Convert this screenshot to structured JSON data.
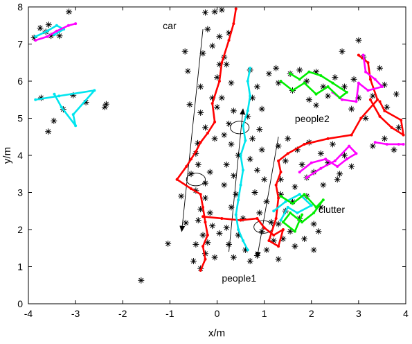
{
  "chart_data": {
    "type": "scatter",
    "title": "",
    "xlabel": "x/m",
    "ylabel": "y/m",
    "xlim": [
      -4,
      4
    ],
    "ylim": [
      0,
      8
    ],
    "xticks": [
      -4,
      -3,
      -2,
      -1,
      0,
      1,
      2,
      3,
      4
    ],
    "yticks": [
      0,
      1,
      2,
      3,
      4,
      5,
      6,
      7,
      8
    ],
    "grid": false,
    "colors": {
      "measurements": "#000000",
      "red": "#ff0000",
      "cyan": "#00e5ee",
      "green": "#00ee00",
      "magenta": "#ff00ff"
    },
    "annotations": [
      {
        "text": "car",
        "x": -1.15,
        "y": 7.4
      },
      {
        "text": "people2",
        "x": 1.65,
        "y": 4.9
      },
      {
        "text": "clutter",
        "x": 2.15,
        "y": 2.45
      },
      {
        "text": "people1",
        "x": 0.1,
        "y": 0.6
      }
    ],
    "arrows": [
      {
        "from": [
          -0.3,
          7.4
        ],
        "to": [
          -0.75,
          1.95
        ]
      },
      {
        "from": [
          0.25,
          1.4
        ],
        "to": [
          0.55,
          5.25
        ]
      },
      {
        "from": [
          1.3,
          4.5
        ],
        "to": [
          0.85,
          1.25
        ]
      }
    ],
    "ellipses": [
      {
        "cx": -0.45,
        "cy": 3.35,
        "rx": 0.2,
        "ry": 0.17
      },
      {
        "cx": 0.48,
        "cy": 4.75,
        "rx": 0.2,
        "ry": 0.17
      },
      {
        "cx": 0.98,
        "cy": 2.07,
        "rx": 0.2,
        "ry": 0.17
      }
    ],
    "measurements": [
      [
        -3.75,
        7.43
      ],
      [
        -3.63,
        7.33
      ],
      [
        -3.57,
        7.52
      ],
      [
        -3.88,
        7.17
      ],
      [
        -3.52,
        7.22
      ],
      [
        -3.34,
        7.22
      ],
      [
        -3.14,
        7.87
      ],
      [
        -3.46,
        4.93
      ],
      [
        -3.58,
        4.64
      ],
      [
        -3.26,
        5.24
      ],
      [
        -3.05,
        5.62
      ],
      [
        -2.78,
        5.43
      ],
      [
        -2.35,
        5.38
      ],
      [
        -2.38,
        5.3
      ],
      [
        -3.73,
        5.55
      ],
      [
        -1.61,
        0.63
      ],
      [
        -1.04,
        1.62
      ],
      [
        -0.68,
        6.8
      ],
      [
        -0.62,
        6.27
      ],
      [
        -0.58,
        5.37
      ],
      [
        -0.66,
        2.18
      ],
      [
        -0.41,
        4.33
      ],
      [
        -0.76,
        2.9
      ],
      [
        -0.25,
        7.85
      ],
      [
        -0.05,
        7.87
      ],
      [
        0.1,
        7.92
      ],
      [
        -0.2,
        7.4
      ],
      [
        0.05,
        7.2
      ],
      [
        -0.1,
        6.95
      ],
      [
        0.15,
        6.65
      ],
      [
        -0.3,
        6.75
      ],
      [
        0.05,
        6.45
      ],
      [
        0.0,
        6.1
      ],
      [
        -0.35,
        5.85
      ],
      [
        -0.1,
        5.55
      ],
      [
        -0.35,
        5.15
      ],
      [
        0.0,
        5.3
      ],
      [
        -0.25,
        4.75
      ],
      [
        -0.05,
        4.45
      ],
      [
        -0.45,
        4.05
      ],
      [
        -0.4,
        3.75
      ],
      [
        -0.15,
        3.55
      ],
      [
        -0.55,
        3.5
      ],
      [
        -0.25,
        3.25
      ],
      [
        -0.45,
        3.05
      ],
      [
        -0.25,
        2.85
      ],
      [
        -0.35,
        2.55
      ],
      [
        -0.15,
        2.45
      ],
      [
        -0.4,
        2.25
      ],
      [
        -0.1,
        2.1
      ],
      [
        -0.3,
        1.85
      ],
      [
        -0.45,
        1.6
      ],
      [
        -0.25,
        1.35
      ],
      [
        -0.5,
        1.15
      ],
      [
        -0.35,
        0.95
      ],
      [
        -0.05,
        1.25
      ],
      [
        -0.2,
        1.65
      ],
      [
        0.05,
        1.9
      ],
      [
        0.25,
        7.3
      ],
      [
        0.2,
        6.45
      ],
      [
        0.3,
        5.95
      ],
      [
        0.1,
        5.55
      ],
      [
        0.35,
        5.2
      ],
      [
        0.25,
        4.85
      ],
      [
        0.15,
        4.55
      ],
      [
        0.3,
        4.3
      ],
      [
        0.45,
        4.0
      ],
      [
        0.2,
        3.75
      ],
      [
        0.35,
        3.45
      ],
      [
        0.15,
        3.2
      ],
      [
        0.4,
        2.95
      ],
      [
        0.3,
        2.6
      ],
      [
        0.55,
        2.3
      ],
      [
        0.2,
        2.05
      ],
      [
        0.45,
        1.85
      ],
      [
        0.25,
        1.6
      ],
      [
        0.6,
        1.45
      ],
      [
        0.35,
        1.25
      ],
      [
        0.7,
        1.15
      ],
      [
        0.7,
        6.3
      ],
      [
        0.85,
        5.85
      ],
      [
        0.75,
        5.55
      ],
      [
        0.95,
        5.25
      ],
      [
        0.65,
        5.05
      ],
      [
        0.9,
        4.7
      ],
      [
        0.75,
        4.45
      ],
      [
        0.95,
        4.15
      ],
      [
        0.7,
        3.9
      ],
      [
        0.85,
        3.6
      ],
      [
        1.0,
        3.35
      ],
      [
        0.8,
        3.0
      ],
      [
        1.05,
        2.75
      ],
      [
        0.9,
        2.45
      ],
      [
        1.15,
        2.2
      ],
      [
        0.95,
        1.95
      ],
      [
        1.2,
        1.7
      ],
      [
        1.05,
        1.45
      ],
      [
        0.85,
        1.3
      ],
      [
        1.3,
        1.2
      ],
      [
        1.1,
        6.2
      ],
      [
        1.3,
        5.95
      ],
      [
        1.25,
        6.35
      ],
      [
        1.55,
        6.2
      ],
      [
        1.75,
        6.3
      ],
      [
        1.9,
        6.0
      ],
      [
        2.1,
        6.25
      ],
      [
        2.25,
        5.85
      ],
      [
        2.5,
        6.1
      ],
      [
        1.6,
        5.75
      ],
      [
        1.95,
        5.5
      ],
      [
        2.35,
        5.6
      ],
      [
        2.1,
        5.35
      ],
      [
        1.3,
        4.25
      ],
      [
        1.5,
        4.45
      ],
      [
        1.7,
        4.15
      ],
      [
        1.95,
        4.35
      ],
      [
        2.2,
        4.05
      ],
      [
        2.45,
        4.3
      ],
      [
        2.7,
        4.0
      ],
      [
        1.45,
        3.85
      ],
      [
        1.8,
        3.75
      ],
      [
        2.05,
        3.55
      ],
      [
        2.35,
        3.8
      ],
      [
        2.6,
        3.5
      ],
      [
        2.85,
        3.7
      ],
      [
        1.35,
        3.35
      ],
      [
        1.65,
        3.15
      ],
      [
        1.9,
        3.4
      ],
      [
        2.25,
        3.2
      ],
      [
        2.55,
        3.35
      ],
      [
        1.35,
        2.95
      ],
      [
        1.6,
        2.75
      ],
      [
        1.9,
        2.9
      ],
      [
        2.2,
        2.6
      ],
      [
        1.45,
        2.5
      ],
      [
        1.75,
        2.3
      ],
      [
        2.05,
        2.15
      ],
      [
        1.3,
        2.15
      ],
      [
        1.55,
        1.95
      ],
      [
        1.85,
        1.75
      ],
      [
        2.15,
        1.95
      ],
      [
        1.4,
        1.75
      ],
      [
        1.65,
        1.55
      ],
      [
        2.05,
        1.45
      ],
      [
        2.7,
        5.85
      ],
      [
        2.9,
        6.05
      ],
      [
        3.0,
        5.55
      ],
      [
        2.85,
        5.25
      ],
      [
        3.15,
        5.0
      ],
      [
        3.3,
        5.6
      ],
      [
        3.55,
        5.9
      ],
      [
        3.8,
        5.65
      ],
      [
        3.6,
        5.3
      ],
      [
        3.85,
        4.75
      ],
      [
        3.55,
        4.45
      ],
      [
        3.3,
        4.25
      ],
      [
        3.75,
        4.15
      ],
      [
        3.1,
        6.65
      ],
      [
        2.65,
        6.8
      ],
      [
        3.0,
        7.1
      ],
      [
        3.45,
        6.35
      ]
    ],
    "series": [
      {
        "color_key": "red",
        "points": [
          [
            0.4,
            7.95
          ],
          [
            0.35,
            7.55
          ],
          [
            0.25,
            7.1
          ],
          [
            0.1,
            6.5
          ],
          [
            0.05,
            6.0
          ],
          [
            -0.1,
            5.4
          ],
          [
            -0.05,
            4.9
          ],
          [
            -0.2,
            4.6
          ],
          [
            -0.35,
            4.35
          ],
          [
            -0.45,
            4.1
          ],
          [
            -0.55,
            3.9
          ],
          [
            -0.65,
            3.7
          ],
          [
            -0.85,
            3.35
          ],
          [
            -0.55,
            3.1
          ],
          [
            -0.35,
            2.95
          ],
          [
            -0.3,
            2.6
          ],
          [
            -0.25,
            2.2
          ],
          [
            -0.2,
            1.85
          ],
          [
            -0.3,
            1.55
          ],
          [
            -0.25,
            1.2
          ],
          [
            -0.35,
            0.9
          ]
        ]
      },
      {
        "color_key": "red",
        "points": [
          [
            -0.3,
            2.35
          ],
          [
            0.1,
            2.3
          ],
          [
            0.5,
            2.25
          ],
          [
            0.85,
            2.3
          ],
          [
            1.0,
            2.05
          ],
          [
            1.2,
            1.85
          ],
          [
            1.4,
            2.0
          ],
          [
            1.3,
            1.55
          ],
          [
            1.1,
            1.7
          ],
          [
            1.25,
            2.3
          ],
          [
            1.3,
            2.85
          ],
          [
            1.25,
            3.2
          ],
          [
            1.35,
            3.55
          ],
          [
            1.3,
            3.85
          ],
          [
            1.5,
            4.05
          ],
          [
            1.85,
            4.3
          ],
          [
            2.35,
            4.45
          ],
          [
            2.85,
            4.55
          ],
          [
            3.05,
            5.0
          ],
          [
            3.4,
            5.5
          ],
          [
            3.25,
            6.05
          ],
          [
            3.2,
            6.5
          ],
          [
            3.0,
            6.7
          ]
        ]
      },
      {
        "color_key": "red",
        "points": [
          [
            3.25,
            5.5
          ],
          [
            3.45,
            5.05
          ],
          [
            3.7,
            4.75
          ],
          [
            3.95,
            4.55
          ],
          [
            3.9,
            4.95
          ],
          [
            3.55,
            5.2
          ],
          [
            3.45,
            5.45
          ]
        ]
      },
      {
        "color_key": "cyan",
        "points": [
          [
            0.7,
            6.35
          ],
          [
            0.65,
            6.0
          ],
          [
            0.7,
            5.6
          ],
          [
            0.65,
            5.2
          ],
          [
            0.55,
            4.8
          ],
          [
            0.6,
            4.4
          ],
          [
            0.5,
            4.0
          ],
          [
            0.55,
            3.6
          ],
          [
            0.5,
            3.2
          ],
          [
            0.45,
            2.8
          ],
          [
            0.4,
            2.4
          ],
          [
            0.45,
            2.0
          ],
          [
            0.55,
            1.7
          ],
          [
            0.65,
            1.45
          ]
        ]
      },
      {
        "color_key": "cyan",
        "points": [
          [
            -3.85,
            5.5
          ],
          [
            -3.35,
            5.6
          ],
          [
            -2.6,
            5.75
          ],
          [
            -3.05,
            5.1
          ],
          [
            -3.0,
            4.8
          ],
          [
            -3.3,
            5.3
          ],
          [
            -3.45,
            5.65
          ]
        ]
      },
      {
        "color_key": "cyan",
        "points": [
          [
            -3.85,
            7.2
          ],
          [
            -3.6,
            7.35
          ],
          [
            -3.4,
            7.5
          ],
          [
            -3.25,
            7.4
          ],
          [
            -3.45,
            7.25
          ]
        ]
      },
      {
        "color_key": "cyan",
        "points": [
          [
            1.2,
            2.5
          ],
          [
            1.45,
            2.75
          ],
          [
            1.75,
            2.95
          ],
          [
            2.0,
            2.65
          ],
          [
            1.7,
            2.45
          ],
          [
            1.5,
            2.6
          ],
          [
            1.35,
            2.25
          ]
        ]
      },
      {
        "color_key": "magenta",
        "points": [
          [
            -3.85,
            7.1
          ],
          [
            -3.6,
            7.2
          ],
          [
            -3.4,
            7.35
          ],
          [
            -3.15,
            7.5
          ],
          [
            -3.0,
            7.55
          ]
        ]
      },
      {
        "color_key": "magenta",
        "points": [
          [
            1.75,
            3.55
          ],
          [
            2.0,
            3.8
          ],
          [
            2.3,
            3.9
          ],
          [
            2.55,
            3.7
          ],
          [
            2.75,
            3.9
          ],
          [
            2.95,
            4.05
          ],
          [
            2.8,
            4.25
          ],
          [
            2.5,
            3.85
          ],
          [
            2.2,
            3.65
          ],
          [
            1.9,
            3.4
          ]
        ]
      },
      {
        "color_key": "magenta",
        "points": [
          [
            3.1,
            6.7
          ],
          [
            3.15,
            6.25
          ],
          [
            3.35,
            6.05
          ],
          [
            3.5,
            5.85
          ],
          [
            3.2,
            5.75
          ],
          [
            3.0,
            5.95
          ],
          [
            2.95,
            5.45
          ],
          [
            2.65,
            5.5
          ],
          [
            2.45,
            5.7
          ]
        ]
      },
      {
        "color_key": "magenta",
        "points": [
          [
            3.35,
            4.35
          ],
          [
            3.6,
            4.3
          ],
          [
            3.85,
            4.3
          ],
          [
            3.95,
            4.3
          ]
        ]
      },
      {
        "color_key": "green",
        "points": [
          [
            1.35,
            6.0
          ],
          [
            1.6,
            5.75
          ],
          [
            1.85,
            5.95
          ],
          [
            2.1,
            5.65
          ],
          [
            2.35,
            5.85
          ],
          [
            2.6,
            5.55
          ],
          [
            2.75,
            5.7
          ],
          [
            2.45,
            5.95
          ],
          [
            2.2,
            6.15
          ],
          [
            1.95,
            6.25
          ],
          [
            1.75,
            6.05
          ],
          [
            1.55,
            6.2
          ]
        ]
      },
      {
        "color_key": "green",
        "points": [
          [
            1.35,
            2.9
          ],
          [
            1.6,
            2.7
          ],
          [
            1.85,
            2.95
          ],
          [
            2.1,
            2.6
          ],
          [
            2.25,
            2.8
          ],
          [
            2.05,
            2.45
          ],
          [
            1.8,
            2.2
          ],
          [
            1.55,
            2.45
          ],
          [
            1.4,
            2.2
          ],
          [
            1.65,
            1.95
          ],
          [
            1.8,
            2.4
          ]
        ]
      }
    ]
  }
}
